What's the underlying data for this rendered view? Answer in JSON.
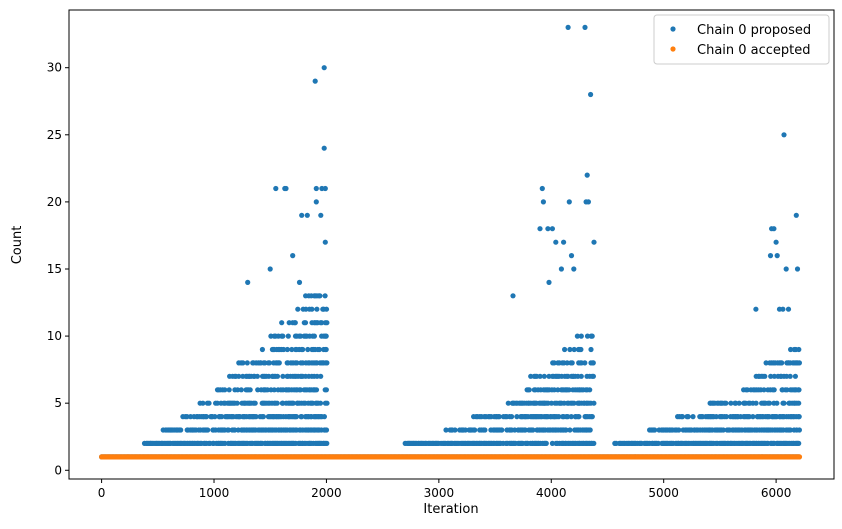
{
  "chart_data": {
    "type": "scatter",
    "xlabel": "Iteration",
    "ylabel": "Count",
    "xlim": [
      -290,
      6515
    ],
    "ylim": [
      -0.65,
      34.3
    ],
    "xticks": [
      0,
      1000,
      2000,
      3000,
      4000,
      5000,
      6000
    ],
    "yticks": [
      0,
      5,
      10,
      15,
      20,
      25,
      30
    ],
    "legend": {
      "position": "top-right"
    },
    "series": [
      {
        "name": "Chain 0 proposed",
        "color": "#1f77b4",
        "x_range": [
          0,
          6210
        ],
        "baseline": 1,
        "bursts": [
          {
            "x": [
              380,
              2000
            ],
            "y_min": 2,
            "envelope_x": [
              380,
              700,
              1000,
              1200,
              1400,
              1600,
              1800,
              2000
            ],
            "envelope_y": [
              2,
              4,
              6,
              8,
              9,
              11,
              13,
              14
            ]
          },
          {
            "x": [
              2700,
              4380
            ],
            "y_min": 2,
            "envelope_x": [
              2700,
              3000,
              3300,
              3600,
              3800,
              4000,
              4200,
              4380
            ],
            "envelope_y": [
              2,
              3,
              4,
              5,
              7,
              8,
              10,
              11
            ]
          },
          {
            "x": [
              4550,
              6210
            ],
            "y_min": 2,
            "envelope_x": [
              4550,
              4850,
              5100,
              5400,
              5700,
              5900,
              6100,
              6210
            ],
            "envelope_y": [
              2,
              3,
              4,
              5,
              6,
              8,
              9,
              10
            ]
          }
        ],
        "outliers": {
          "x": [
            1550,
            1630,
            1640,
            1780,
            1830,
            1900,
            1910,
            1960,
            1980,
            1980,
            1990,
            1990,
            1910,
            1950,
            1500,
            1300,
            1700,
            1760,
            3920,
            3930,
            3970,
            4010,
            4040,
            4150,
            4160,
            4300,
            4310,
            4320,
            4330,
            4350,
            4380,
            3900,
            4090,
            4180,
            4110,
            3660,
            3980,
            4200,
            6070,
            6090,
            6180,
            5960,
            5980,
            6000,
            6010,
            5950,
            6190,
            6060,
            6110,
            5820,
            6030
          ],
          "y": [
            21,
            21,
            21,
            19,
            19,
            29,
            21,
            21,
            30,
            24,
            17,
            21,
            20,
            19,
            15,
            14,
            16,
            14,
            21,
            20,
            18,
            18,
            17,
            33,
            20,
            33,
            20,
            22,
            20,
            28,
            17,
            18,
            15,
            16,
            17,
            13,
            14,
            15,
            25,
            15,
            19,
            18,
            18,
            17,
            16,
            16,
            15,
            12,
            12,
            12,
            12
          ]
        }
      },
      {
        "name": "Chain 0 accepted",
        "color": "#ff7f0e",
        "x_range": [
          0,
          6210
        ],
        "value": 1
      }
    ]
  }
}
